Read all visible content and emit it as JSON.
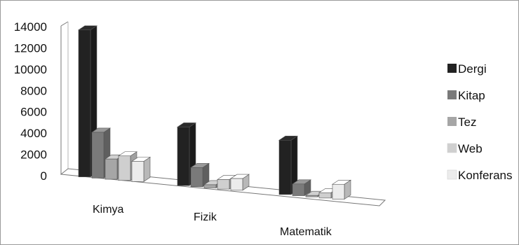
{
  "chart_data": {
    "type": "bar",
    "style": "3d-clustered-column",
    "categories": [
      "Kimya",
      "Fizik",
      "Matematik"
    ],
    "series": [
      {
        "name": "Dergi",
        "values": [
          13800,
          5500,
          5100
        ]
      },
      {
        "name": "Kitap",
        "values": [
          4300,
          1800,
          1100
        ]
      },
      {
        "name": "Tez",
        "values": [
          1900,
          300,
          100
        ]
      },
      {
        "name": "Web",
        "values": [
          2300,
          900,
          500
        ]
      },
      {
        "name": "Konferans",
        "values": [
          1900,
          1100,
          1400
        ]
      }
    ],
    "y_ticks": [
      "14000",
      "12000",
      "10000",
      "8000",
      "6000",
      "4000",
      "2000",
      "0"
    ],
    "ylim": [
      0,
      14000
    ],
    "grid": false,
    "legend_position": "right",
    "colors": [
      "#222222",
      "#7a7a7a",
      "#a6a6a6",
      "#cfcfcf",
      "#ececec"
    ]
  }
}
